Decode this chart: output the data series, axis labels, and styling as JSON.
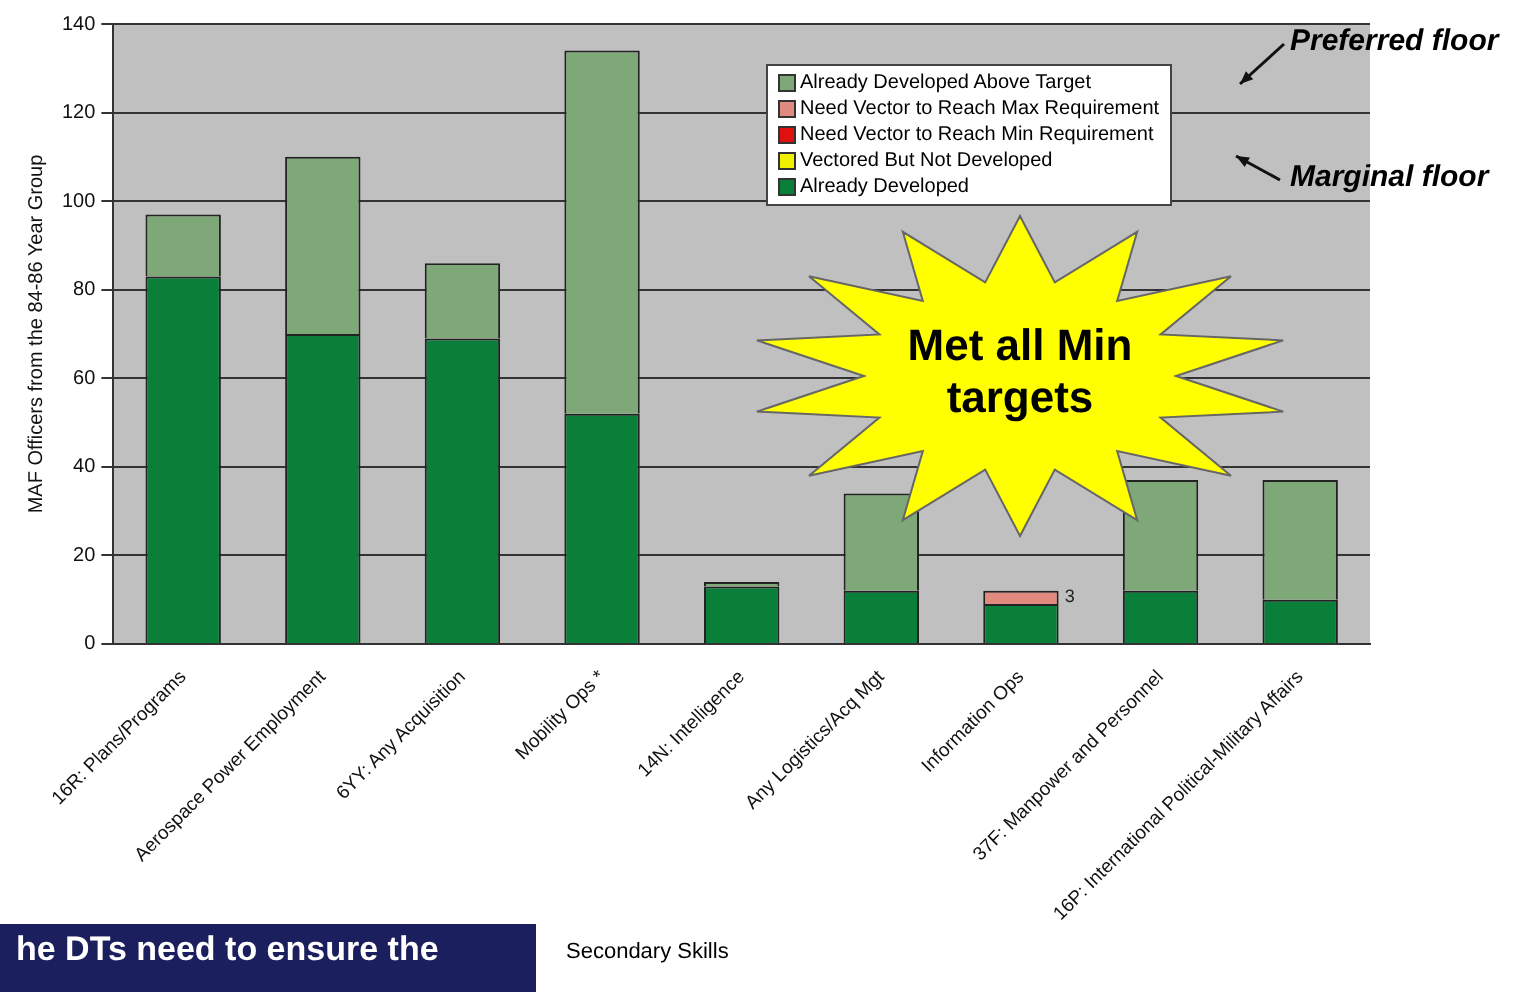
{
  "chart_data": {
    "type": "bar",
    "stacked": true,
    "ylabel": "MAF Officers from the 84-86 Year Group",
    "xlabel": "Secondary Skills",
    "categories": [
      "16R: Plans/Programs",
      "Aerospace Power Employment",
      "6YY: Any Acquisition",
      "Mobility Ops *",
      "14N: Intelligence",
      "Any Logistics/Acq Mgt",
      "Information Ops",
      "37F: Manpower and Personnel",
      "16P: International Political-Military Affairs"
    ],
    "series": [
      {
        "name": "Already Developed",
        "color": "#0a7f3a",
        "values": [
          83,
          70,
          69,
          52,
          13,
          12,
          9,
          12,
          10
        ]
      },
      {
        "name": "Vectored But Not Developed",
        "color": "#f0f000",
        "values": [
          null,
          null,
          null,
          null,
          null,
          null,
          null,
          null,
          null
        ]
      },
      {
        "name": "Need Vector to Reach Min Requirement",
        "color": "#e01010",
        "values": [
          null,
          null,
          null,
          null,
          null,
          null,
          null,
          null,
          null
        ]
      },
      {
        "name": "Need Vector to Reach Max Requirement",
        "color": "#e08a80",
        "values": [
          null,
          null,
          null,
          null,
          null,
          null,
          3,
          null,
          null
        ],
        "value_labels": [
          null,
          null,
          null,
          null,
          null,
          null,
          "3",
          null,
          null
        ]
      },
      {
        "name": "Already Developed Above Target",
        "color": "#7ea877",
        "values": [
          14,
          40,
          17,
          82,
          1,
          22,
          null,
          25,
          27
        ]
      }
    ],
    "ylim": [
      0,
      140
    ],
    "yticks": [
      0,
      20,
      40,
      60,
      80,
      100,
      120,
      140
    ],
    "grid": "y",
    "legend": "top right",
    "annotations": [
      "Preferred floor",
      "Marginal floor",
      "Met all Min targets",
      "he DTs need to ensure the"
    ]
  }
}
